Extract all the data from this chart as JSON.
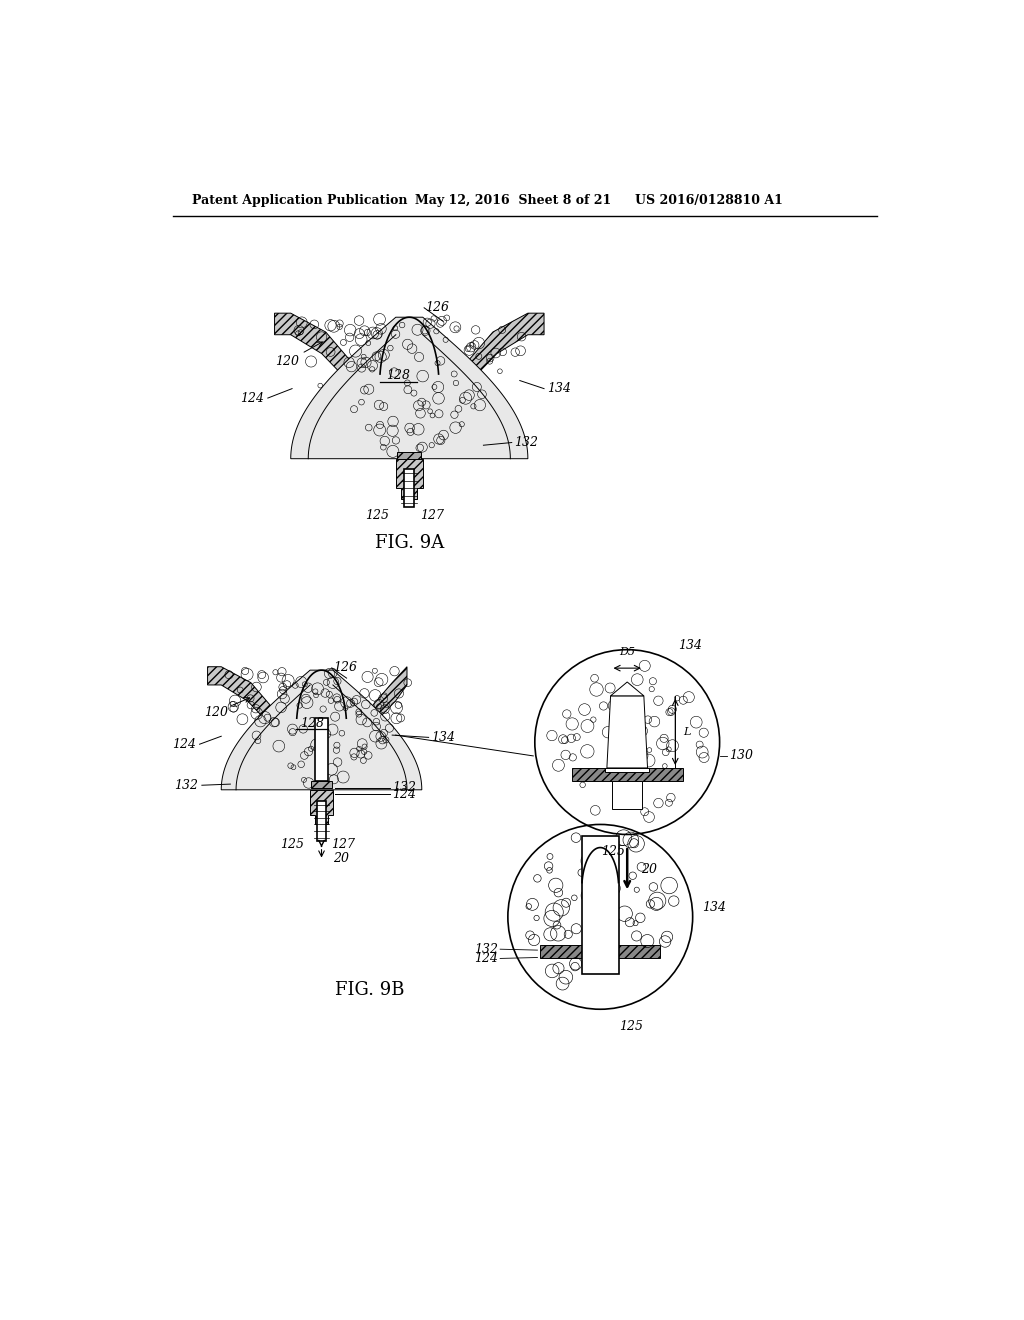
{
  "header_left": "Patent Application Publication",
  "header_mid": "May 12, 2016  Sheet 8 of 21",
  "header_right": "US 2016/0128810 A1",
  "fig9a_label": "FIG. 9A",
  "fig9b_label": "FIG. 9B",
  "bg_color": "#ffffff"
}
